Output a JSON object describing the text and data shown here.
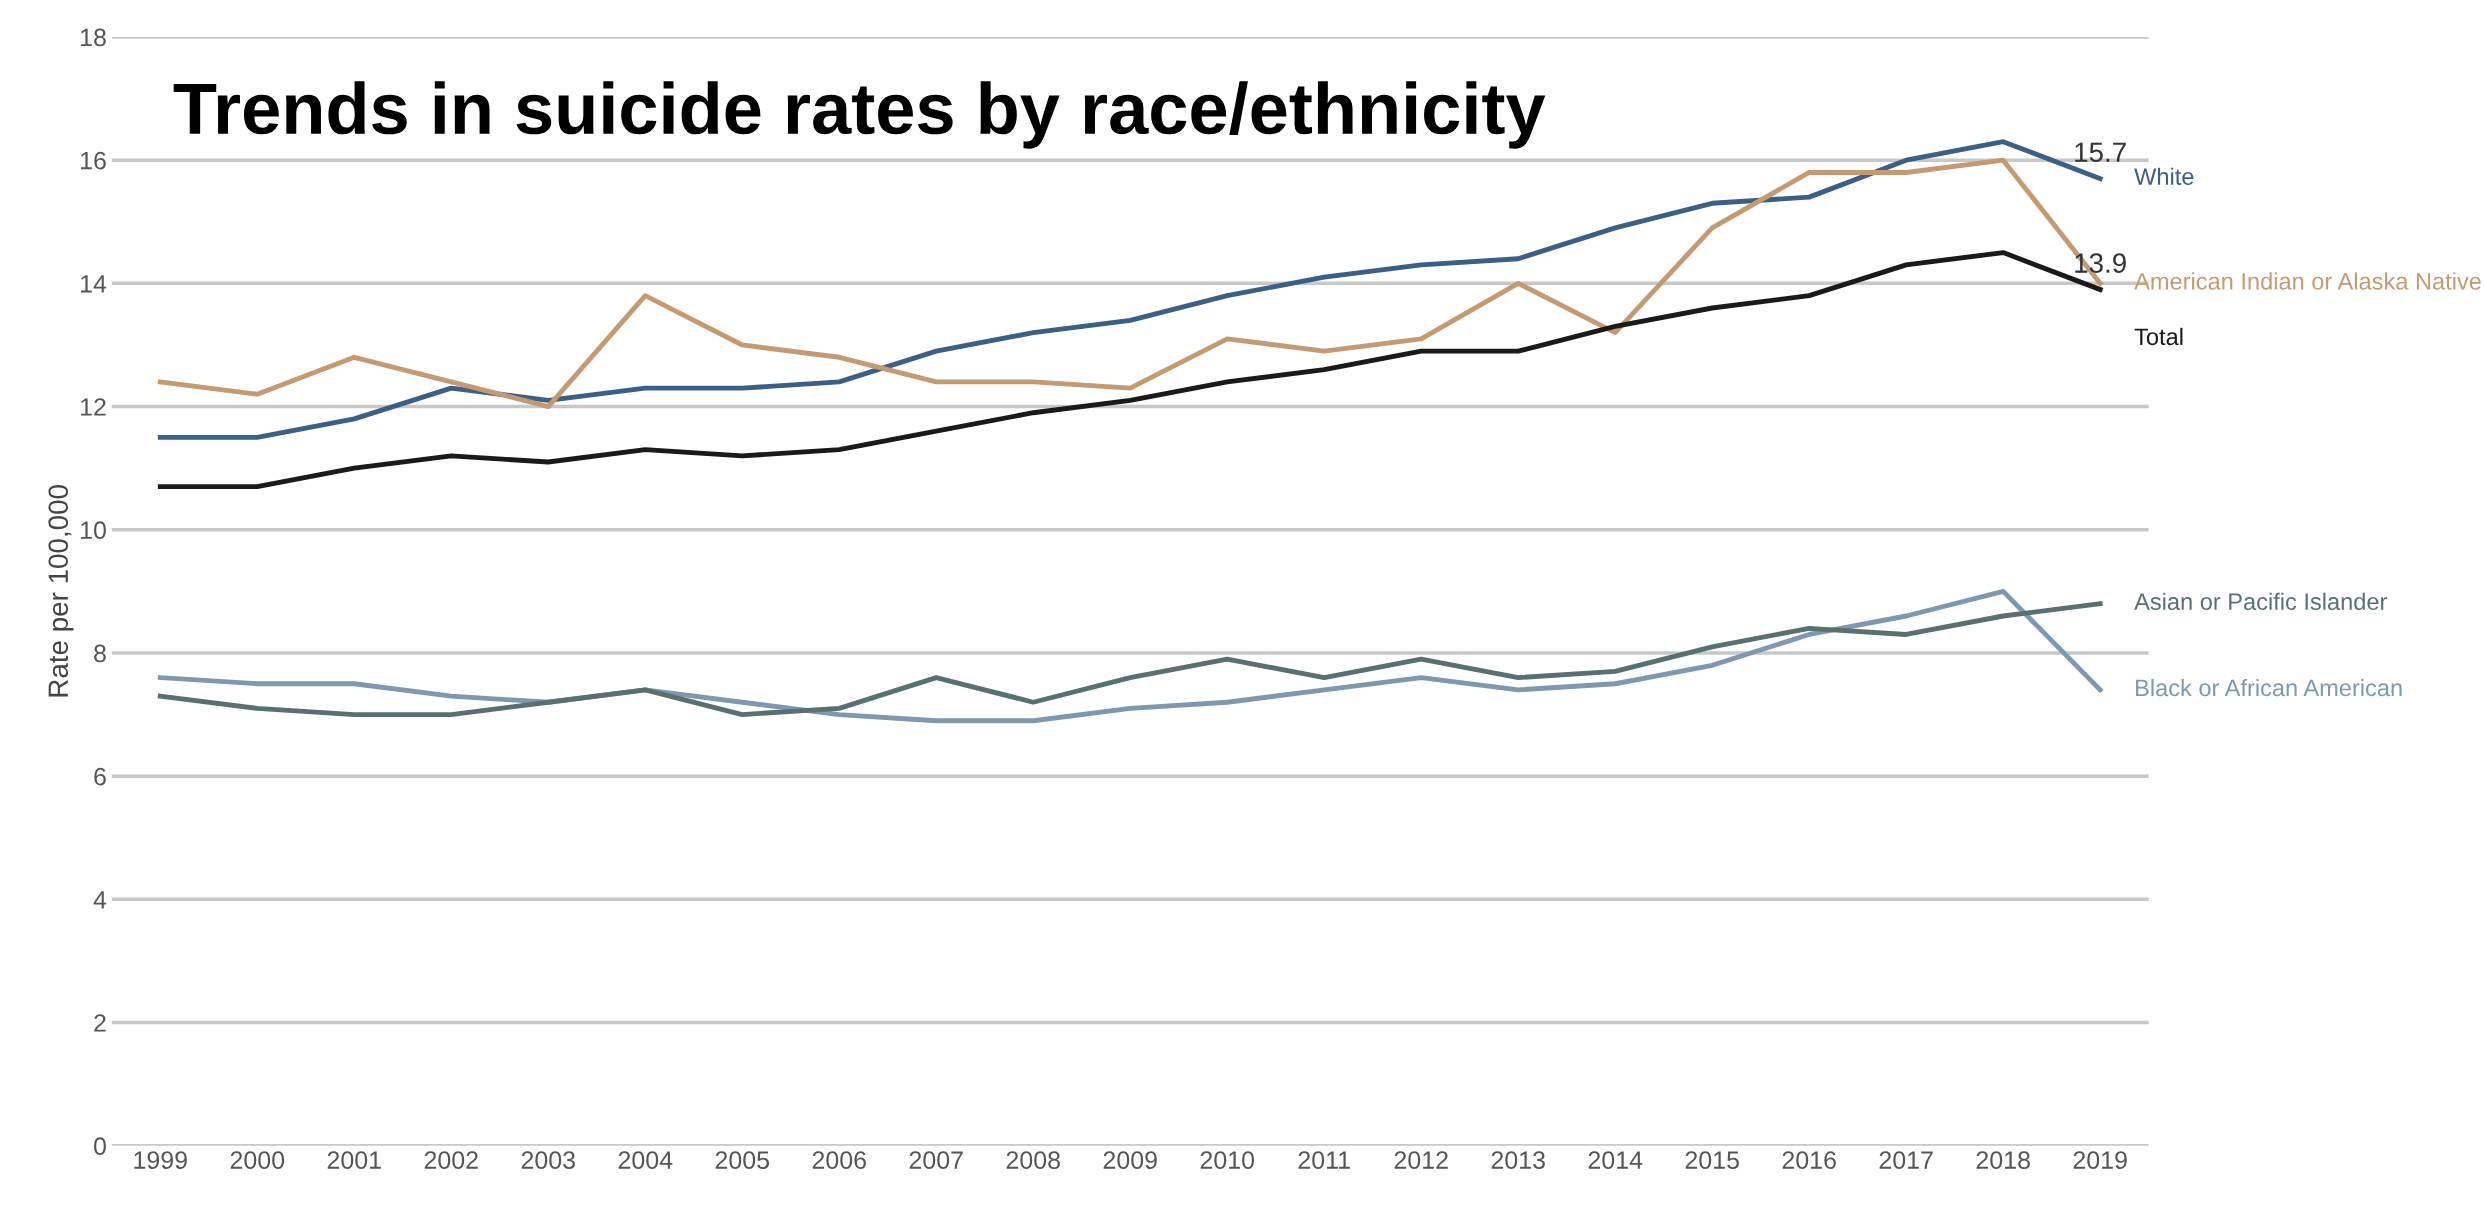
{
  "chart_data": {
    "type": "line",
    "title": "Trends in suicide rates by race/ethnicity",
    "ylabel": "Rate per 100,000",
    "categories": [
      "1999",
      "2000",
      "2001",
      "2002",
      "2003",
      "2004",
      "2005",
      "2006",
      "2007",
      "2008",
      "2009",
      "2010",
      "2011",
      "2012",
      "2013",
      "2014",
      "2015",
      "2016",
      "2017",
      "2018",
      "2019"
    ],
    "series": [
      {
        "name": "White",
        "color": "#3c5f86",
        "values": [
          11.5,
          11.5,
          11.8,
          12.3,
          12.1,
          12.3,
          12.3,
          12.4,
          12.9,
          13.2,
          13.4,
          13.8,
          14.1,
          14.3,
          14.4,
          14.9,
          15.3,
          15.4,
          16.0,
          16.3,
          15.7
        ],
        "value_labels": [
          null,
          null,
          null,
          null,
          null,
          null,
          null,
          null,
          null,
          null,
          null,
          null,
          null,
          null,
          null,
          null,
          null,
          null,
          null,
          null,
          "15.7"
        ]
      },
      {
        "name": "American Indian or Alaska Native",
        "color": "#c49a72",
        "values": [
          12.4,
          12.2,
          12.8,
          12.4,
          12.0,
          13.8,
          13.0,
          12.8,
          12.4,
          12.4,
          12.3,
          13.1,
          12.9,
          13.1,
          14.0,
          13.2,
          14.9,
          15.8,
          15.8,
          16.0,
          14.0
        ]
      },
      {
        "name": "Total",
        "color": "#1a1a1a",
        "values": [
          10.7,
          10.7,
          11.0,
          11.2,
          11.1,
          11.3,
          11.2,
          11.3,
          11.6,
          11.9,
          12.1,
          12.4,
          12.6,
          12.9,
          12.9,
          13.3,
          13.6,
          13.8,
          14.3,
          14.5,
          13.9
        ],
        "value_labels": [
          null,
          null,
          null,
          null,
          null,
          null,
          null,
          null,
          null,
          null,
          null,
          null,
          null,
          null,
          null,
          null,
          null,
          null,
          null,
          null,
          "13.9"
        ]
      },
      {
        "name": "Black or African American",
        "color": "#7e98b0",
        "values": [
          7.6,
          7.5,
          7.5,
          7.3,
          7.2,
          7.4,
          7.2,
          7.0,
          6.9,
          6.9,
          7.1,
          7.2,
          7.4,
          7.6,
          7.4,
          7.5,
          7.8,
          8.3,
          8.6,
          9.0,
          7.4
        ]
      },
      {
        "name": "Asian or Pacific Islander",
        "color": "#5a7070",
        "values": [
          7.3,
          7.1,
          7.0,
          7.0,
          7.2,
          7.4,
          7.0,
          7.1,
          7.6,
          7.2,
          7.6,
          7.9,
          7.6,
          7.9,
          7.6,
          7.7,
          8.1,
          8.4,
          8.3,
          8.6,
          8.8
        ]
      }
    ],
    "ylim": [
      0,
      18
    ],
    "yticks": [
      0,
      2,
      4,
      6,
      8,
      10,
      12,
      14,
      16,
      18
    ],
    "grid": "y",
    "legend": false,
    "marker": "none",
    "line_style": "solid"
  }
}
